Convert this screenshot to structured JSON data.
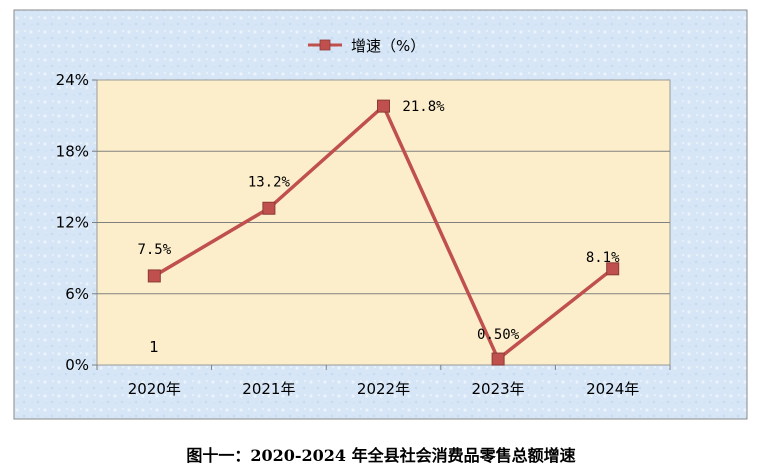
{
  "chart_data": {
    "type": "line",
    "categories": [
      "2020年",
      "2021年",
      "2022年",
      "2023年",
      "2024年"
    ],
    "series": [
      {
        "name": "增速（%）",
        "values": [
          7.5,
          13.2,
          21.8,
          0.5,
          8.1
        ],
        "color": "#c0504d"
      }
    ],
    "data_labels": [
      "7.5%",
      "13.2%",
      "21.8%",
      "0.50%",
      "8.1%"
    ],
    "extra_annotation": "1",
    "y_ticks": [
      "0%",
      "6%",
      "12%",
      "18%",
      "24%"
    ],
    "ylim": [
      0,
      24
    ],
    "grid": true,
    "legend": "top-center",
    "caption": "图十一：2020-2024 年全县社会消费品零售总额增速",
    "colors": {
      "plot_background": "#fdeecb",
      "outer_background": "#d9e8f7",
      "gridline": "#808080",
      "line": "#c0504d"
    }
  }
}
